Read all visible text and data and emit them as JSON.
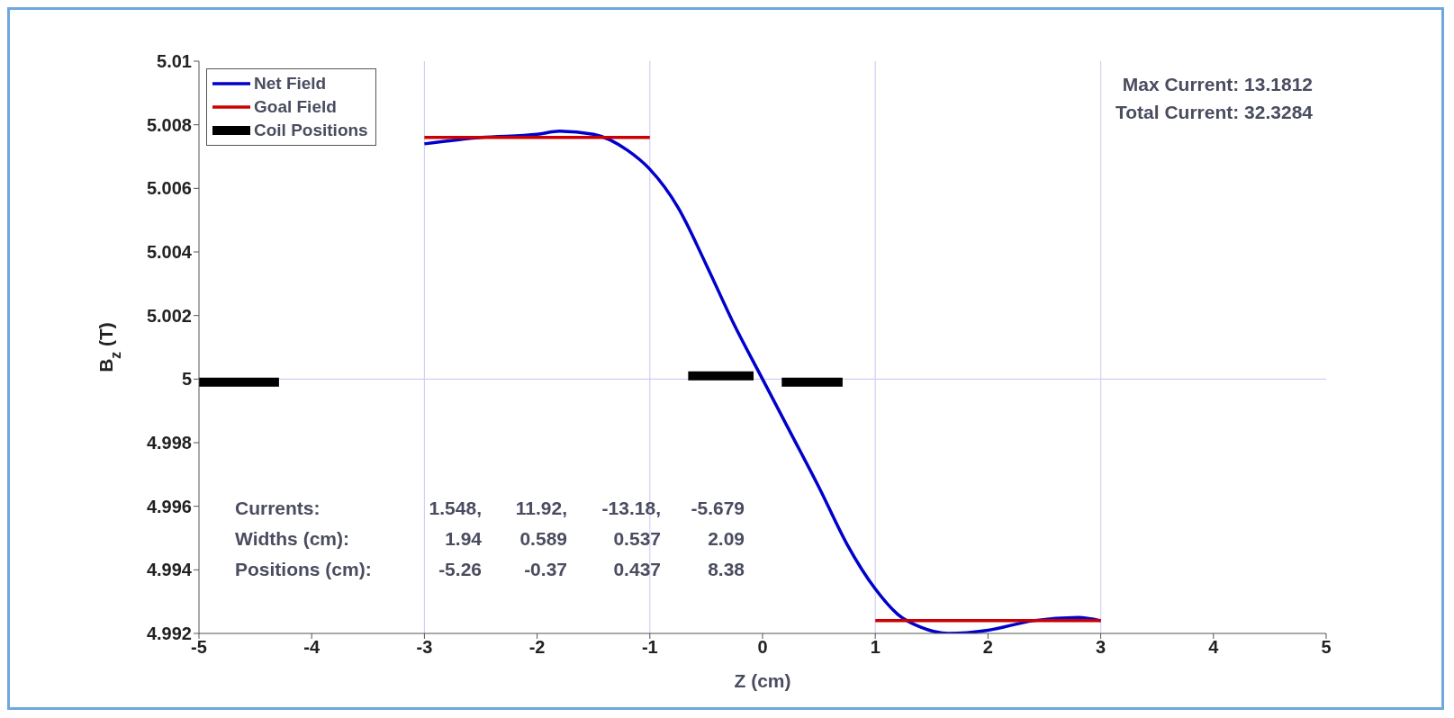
{
  "chart_data": {
    "type": "line",
    "xlabel": "Z (cm)",
    "ylabel": "B$_{z}$ (T)",
    "xlim": [
      -5,
      5
    ],
    "xticks": [
      -5,
      -4,
      -3,
      -2,
      -1,
      0,
      1,
      2,
      3,
      4,
      5
    ],
    "ylim": [
      4.992,
      5.01
    ],
    "yticks": [
      4.992,
      4.994,
      4.996,
      4.998,
      5,
      5.002,
      5.004,
      5.006,
      5.008,
      5.01
    ],
    "grid": false,
    "legend": "top left",
    "series": [
      {
        "name": "Net Field",
        "color": "#0000cc",
        "x": [
          -3,
          -2.5,
          -2,
          -1.8,
          -1.5,
          -1.2,
          -1,
          -0.75,
          -0.5,
          -0.25,
          0,
          0.25,
          0.5,
          0.75,
          1,
          1.2,
          1.4,
          1.65,
          2,
          2.4,
          2.8,
          3
        ],
        "values": [
          5.0074,
          5.0076,
          5.0077,
          5.0078,
          5.0077,
          5.0072,
          5.0066,
          5.0054,
          5.0036,
          5.0017,
          5.0,
          4.9983,
          4.9966,
          4.9948,
          4.9934,
          4.9926,
          4.9922,
          4.992,
          4.9921,
          4.9924,
          4.9925,
          4.9924
        ]
      },
      {
        "name": "Goal Field",
        "color": "#cc0000",
        "x": [
          -3,
          -1
        ],
        "values": [
          5.0076,
          5.0076
        ]
      },
      {
        "color": "#cc0000",
        "x": [
          1,
          3
        ],
        "values": [
          4.9924,
          4.9924
        ]
      },
      {
        "name": "Coil Positions",
        "color": "#000000",
        "x": [
          -5,
          -4.29
        ],
        "values": [
          4.9999,
          4.9999
        ]
      },
      {
        "color": "#000000",
        "x": [
          -0.66,
          -0.08
        ],
        "values": [
          5.0001,
          5.0001
        ]
      },
      {
        "color": "#000000",
        "x": [
          0.17,
          0.71
        ],
        "values": [
          4.9999,
          4.9999
        ]
      }
    ],
    "ref_lines": [
      {
        "axis": "x",
        "value": -3,
        "color": "#d0d0f4"
      },
      {
        "axis": "x",
        "value": -1,
        "color": "#d0d0f4"
      },
      {
        "axis": "x",
        "value": 1,
        "color": "#d0d0f4"
      },
      {
        "axis": "x",
        "value": 3,
        "color": "#d0d0f4"
      },
      {
        "axis": "y",
        "value": 5,
        "color": "#d0d0f4"
      }
    ],
    "annotations": [
      "Max Current: 13.1812",
      "Total Current: 32.3284",
      "Currents:\t1.548,\t11.92,\t-13.18,\t-5.679",
      "Widths (cm):\t1.94\t0.589\t0.537\t2.09",
      "Positions (cm):\t-5.26\t-0.37\t0.437\t8.38"
    ]
  }
}
